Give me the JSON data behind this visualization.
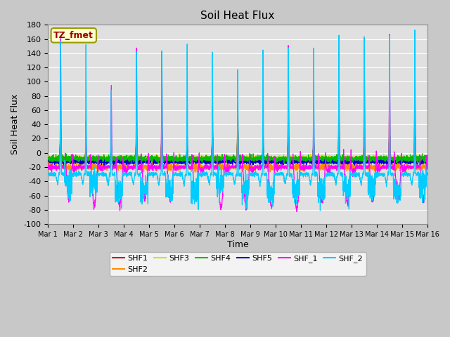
{
  "title": "Soil Heat Flux",
  "ylabel": "Soil Heat Flux",
  "xlabel": "Time",
  "ylim": [
    -100,
    180
  ],
  "fig_bg_color": "#c8c8c8",
  "plot_bg_color": "#e0e0e0",
  "legend_label": "TZ_fmet",
  "series_colors": {
    "SHF1": "#cc0000",
    "SHF2": "#ff8c00",
    "SHF3": "#dddd00",
    "SHF4": "#00bb00",
    "SHF5": "#0000cc",
    "SHF_1": "#ff00ff",
    "SHF_2": "#00ccff"
  },
  "n_points": 2880,
  "n_days": 15,
  "yticks": [
    -100,
    -80,
    -60,
    -40,
    -20,
    0,
    20,
    40,
    60,
    80,
    100,
    120,
    140,
    160,
    180
  ],
  "xtick_labels": [
    "Mar 1",
    "Mar 2",
    "Mar 3",
    "Mar 4",
    "Mar 5",
    "Mar 6",
    "Mar 7",
    "Mar 8",
    "Mar 9",
    "Mar 10",
    "Mar 11",
    "Mar 12",
    "Mar 13",
    "Mar 14",
    "Mar 15",
    "Mar 16"
  ]
}
